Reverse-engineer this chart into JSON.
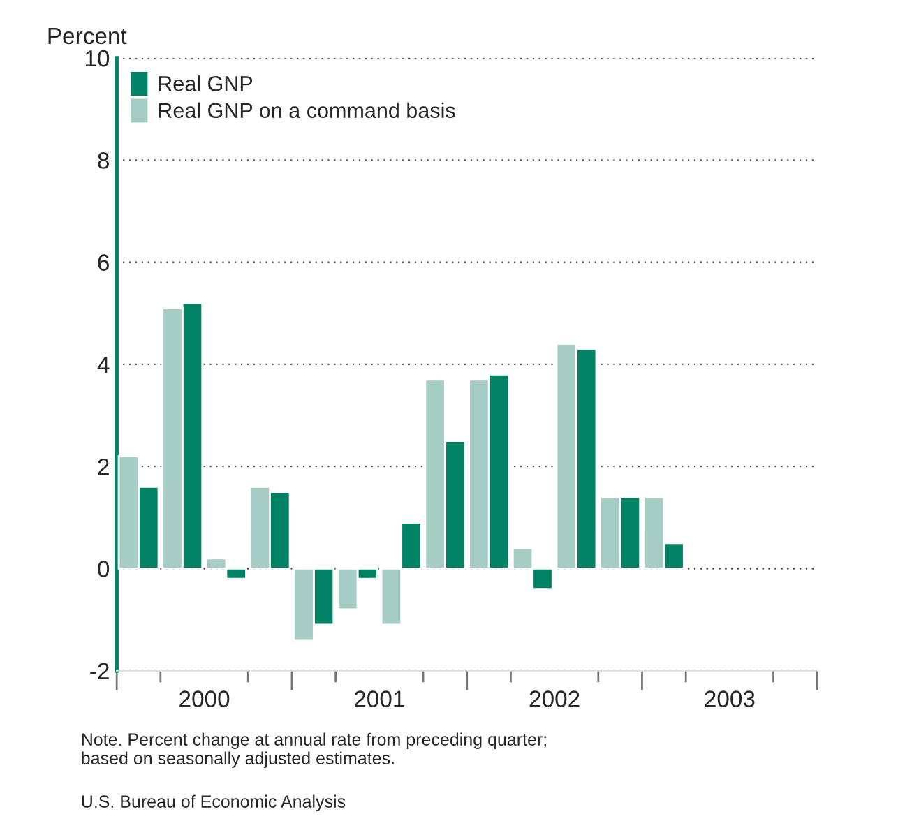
{
  "chart_data": {
    "type": "bar",
    "ylabel": "Percent",
    "x": [
      2000.125,
      2000.375,
      2000.625,
      2000.875,
      2001.125,
      2001.375,
      2001.625,
      2001.875,
      2002.125,
      2002.375,
      2002.625,
      2002.875,
      2003.125
    ],
    "series": [
      {
        "name": "Real GNP",
        "color": "#008265",
        "values": [
          1.6,
          5.2,
          -0.2,
          1.5,
          -1.1,
          -0.2,
          0.9,
          2.5,
          3.8,
          -0.4,
          4.3,
          1.4,
          0.5
        ]
      },
      {
        "name": "Real GNP on a command basis",
        "color": "#a5cdc3",
        "values": [
          2.2,
          5.1,
          0.2,
          1.6,
          -1.4,
          -0.8,
          -1.1,
          3.7,
          3.7,
          0.4,
          4.4,
          1.4,
          1.4
        ]
      }
    ],
    "xlim": [
      2000,
      2004
    ],
    "ylim": [
      -2,
      10
    ],
    "yticks": [
      -2,
      0,
      2,
      4,
      6,
      8,
      10
    ],
    "xticks": [
      {
        "value": 2000,
        "label": null
      },
      {
        "value": 2000.25,
        "label": null
      },
      {
        "value": 2000.5,
        "label": "2000"
      },
      {
        "value": 2000.75,
        "label": null
      },
      {
        "value": 2001,
        "label": null
      },
      {
        "value": 2001.25,
        "label": null
      },
      {
        "value": 2001.5,
        "label": "2001"
      },
      {
        "value": 2001.75,
        "label": null
      },
      {
        "value": 2002,
        "label": null
      },
      {
        "value": 2002.25,
        "label": null
      },
      {
        "value": 2002.5,
        "label": "2002"
      },
      {
        "value": 2002.75,
        "label": null
      },
      {
        "value": 2003,
        "label": null
      },
      {
        "value": 2003.25,
        "label": null
      },
      {
        "value": 2003.5,
        "label": "2003"
      },
      {
        "value": 2003.75,
        "label": null
      },
      {
        "value": 2004,
        "label": null
      }
    ],
    "grid": "y",
    "legend": "top left",
    "annotations": [
      "Note. Percent change at annual rate from preceding quarter;\nbased on seasonally adjusted estimates.",
      "U.S. Bureau of Economic Analysis"
    ]
  }
}
